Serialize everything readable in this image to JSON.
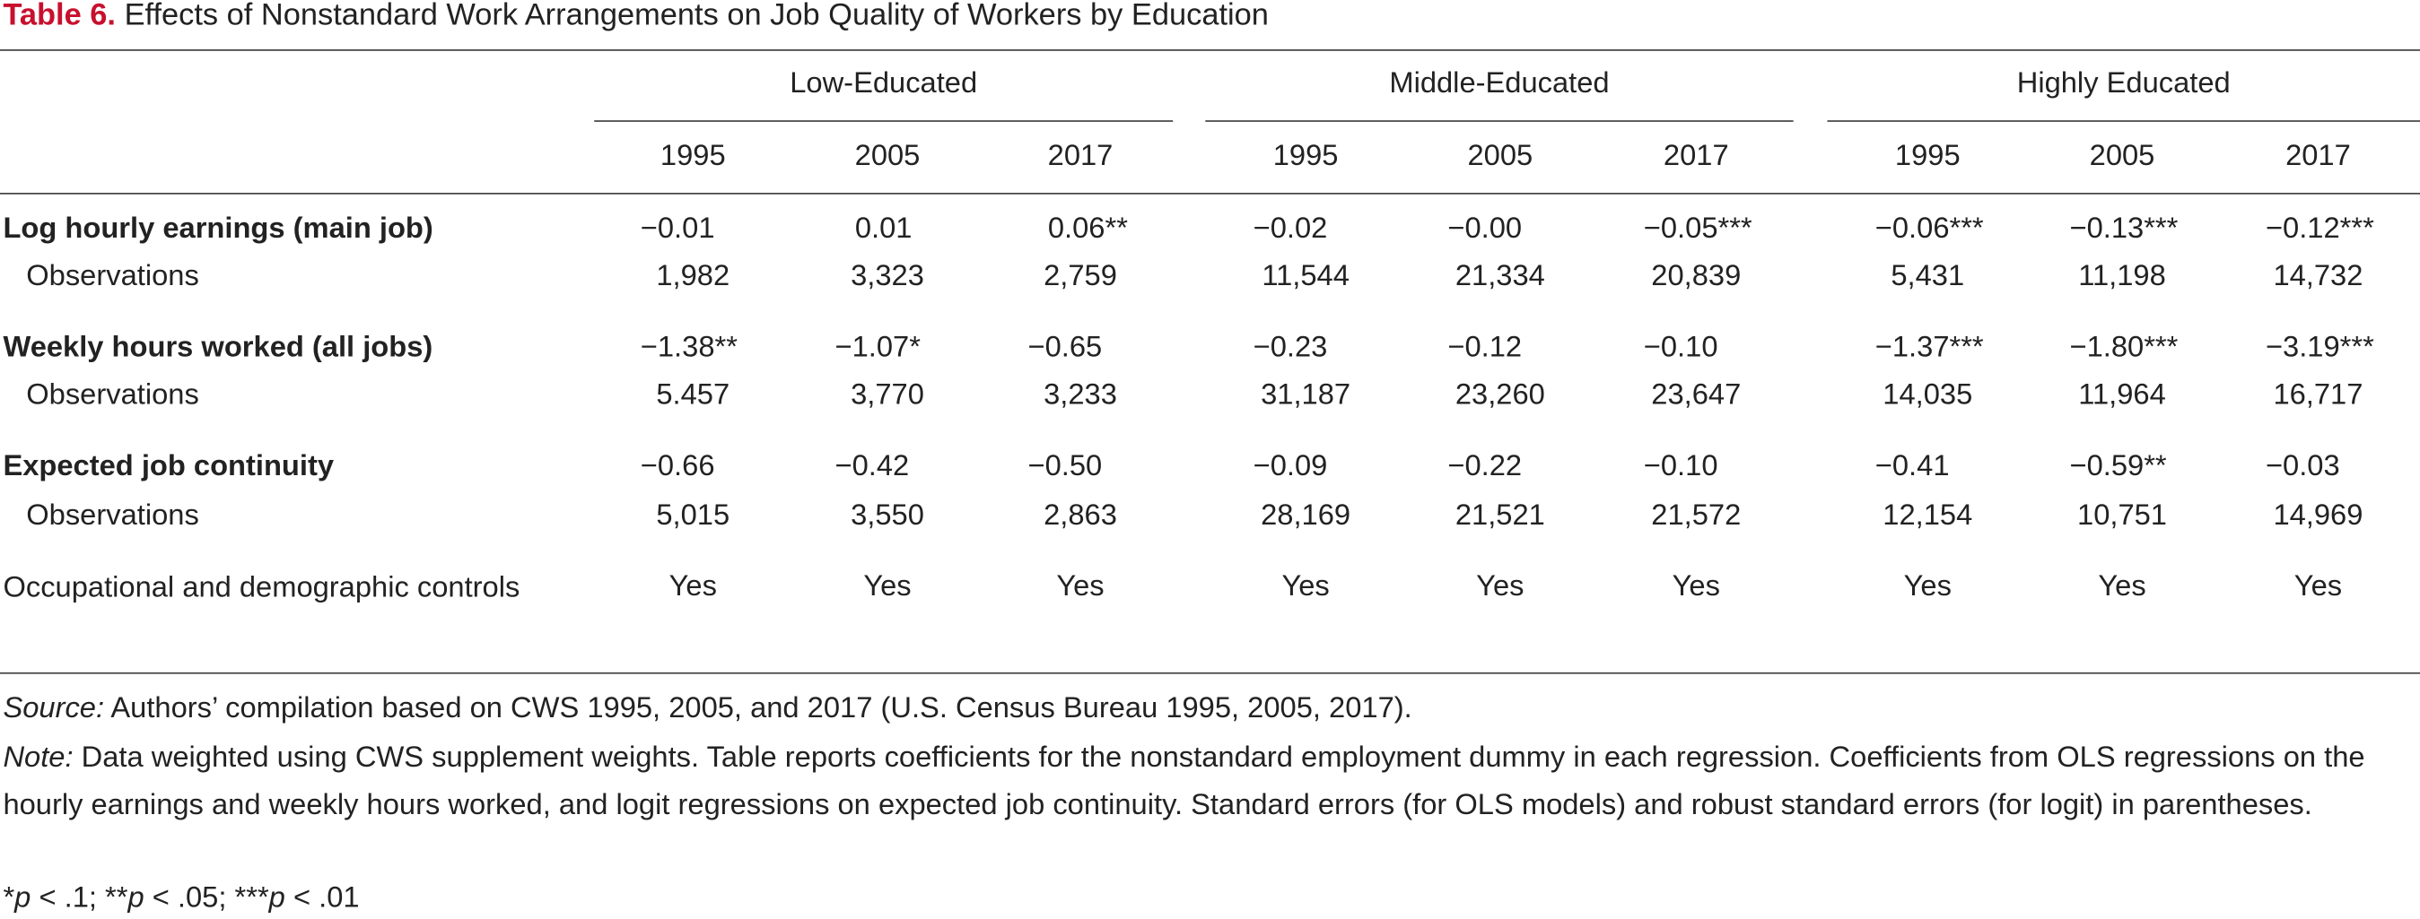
{
  "title": {
    "label": "Table 6.",
    "text": "Effects of Nonstandard Work Arrangements on Job Quality of Workers by Education"
  },
  "table": {
    "groups": [
      "Low-Educated",
      "Middle-Educated",
      "Highly Educated"
    ],
    "years": [
      "1995",
      "2005",
      "2017",
      "1995",
      "2005",
      "2017",
      "1995",
      "2005",
      "2017"
    ],
    "rows": [
      {
        "label": "Log hourly earnings (main job)",
        "values": [
          "−0.01",
          "0.01",
          "0.06**",
          "−0.02",
          "−0.00",
          "−0.05***",
          "−0.06***",
          "−0.13***",
          "−0.12***"
        ]
      },
      {
        "label": "Observations",
        "values": [
          "1,982",
          "3,323",
          "2,759",
          "11,544",
          "21,334",
          "20,839",
          "5,431",
          "11,198",
          "14,732"
        ]
      },
      {
        "label": "Weekly hours worked (all jobs)",
        "values": [
          "−1.38**",
          "−1.07*",
          "−0.65",
          "−0.23",
          "−0.12",
          "−0.10",
          "−1.37***",
          "−1.80***",
          "−3.19***"
        ]
      },
      {
        "label": "Observations",
        "values": [
          "5.457",
          "3,770",
          "3,233",
          "31,187",
          "23,260",
          "23,647",
          "14,035",
          "11,964",
          "16,717"
        ]
      },
      {
        "label": "Expected job continuity",
        "values": [
          "−0.66",
          "−0.42",
          "−0.50",
          "−0.09",
          "−0.22",
          "−0.10",
          "−0.41",
          "−0.59**",
          "−0.03"
        ]
      },
      {
        "label": "Observations",
        "values": [
          "5,015",
          "3,550",
          "2,863",
          "28,169",
          "21,521",
          "21,572",
          "12,154",
          "10,751",
          "14,969"
        ]
      },
      {
        "label": "Occupational and demographic controls",
        "values": [
          "Yes",
          "Yes",
          "Yes",
          "Yes",
          "Yes",
          "Yes",
          "Yes",
          "Yes",
          "Yes"
        ]
      }
    ]
  },
  "notes": {
    "source": {
      "label": "Source:",
      "text": "Authors’ compilation based on CWS 1995, 2005, and 2017 (U.S. Census Bureau 1995, 2005, 2017)."
    },
    "note": {
      "label": "Note:",
      "text": "Data weighted using CWS supplement weights. Table reports coefficients for the nonstandard employment dummy in each regression. Coefficients from OLS regressions on the hourly earnings and weekly hours worked, and logit regressions on expected job continuity. Standard errors (for OLS models) and robust standard errors (for logit) in parentheses."
    },
    "significance": [
      "*",
      "p",
      " < .1; **",
      "p",
      " < .05; ***",
      "p",
      " < .01"
    ]
  }
}
